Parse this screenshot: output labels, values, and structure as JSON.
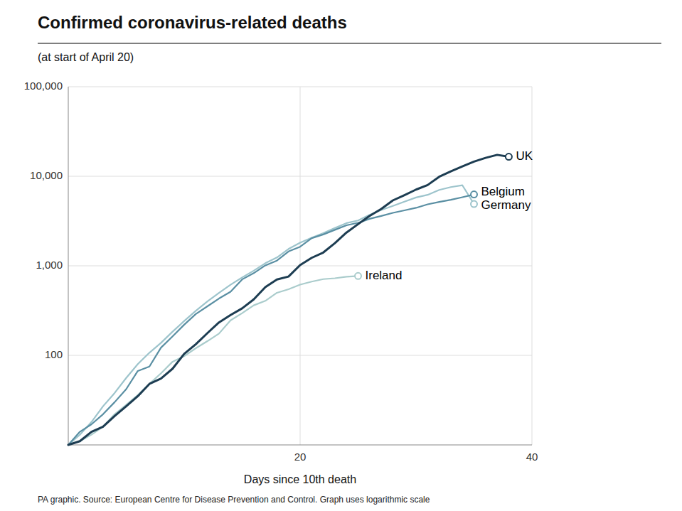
{
  "chart_data": {
    "type": "line",
    "title": "Confirmed coronavirus-related deaths",
    "subtitle": "(at start of April 20)",
    "xlabel": "Days since 10th death",
    "source": "PA graphic. Source: European Centre for Disease Prevention and Control. Graph uses logarithmic scale",
    "log": "y",
    "grid": true,
    "xlim": [
      0,
      40
    ],
    "ylim": [
      10,
      100000
    ],
    "xticks": [
      20,
      40
    ],
    "yticks": [
      100,
      {
        "value": 1000,
        "label": "1,000"
      },
      {
        "value": 10000,
        "label": "10,000"
      },
      {
        "value": 100000,
        "label": "100,000"
      }
    ],
    "series": [
      {
        "name": "UK",
        "color": "#1d3d52",
        "x": [
          0,
          1,
          2,
          3,
          4,
          5,
          6,
          7,
          8,
          9,
          10,
          11,
          12,
          13,
          14,
          15,
          16,
          17,
          18,
          19,
          20,
          21,
          22,
          23,
          24,
          25,
          26,
          27,
          28,
          29,
          30,
          31,
          32,
          33,
          34,
          35,
          36,
          37,
          38
        ],
        "values": [
          10,
          11,
          14,
          16,
          21,
          27,
          35,
          48,
          55,
          71,
          104,
          133,
          177,
          233,
          282,
          335,
          422,
          578,
          703,
          759,
          1019,
          1228,
          1408,
          1789,
          2352,
          2921,
          3605,
          4313,
          5373,
          6159,
          7097,
          7978,
          9875,
          11329,
          12868,
          14576,
          16060,
          17337,
          16509
        ]
      },
      {
        "name": "Belgium",
        "color": "#5a8fa3",
        "x": [
          0,
          1,
          2,
          3,
          4,
          5,
          6,
          7,
          8,
          9,
          10,
          11,
          12,
          13,
          14,
          15,
          16,
          17,
          18,
          19,
          20,
          21,
          22,
          23,
          24,
          25,
          26,
          27,
          28,
          29,
          30,
          31,
          32,
          33,
          34,
          35
        ],
        "values": [
          10,
          14,
          17,
          22,
          30,
          42,
          67,
          75,
          122,
          163,
          220,
          289,
          353,
          431,
          513,
          705,
          828,
          1011,
          1143,
          1447,
          1632,
          2035,
          2240,
          2523,
          2833,
          3019,
          3346,
          3600,
          3903,
          4157,
          4440,
          4857,
          5163,
          5453,
          5828,
          6262
        ]
      },
      {
        "name": "Germany",
        "color": "#9dc4cc",
        "x": [
          0,
          1,
          2,
          3,
          4,
          5,
          6,
          7,
          8,
          9,
          10,
          11,
          12,
          13,
          14,
          15,
          16,
          17,
          18,
          19,
          20,
          21,
          22,
          23,
          24,
          25,
          26,
          27,
          28,
          29,
          30,
          31,
          32,
          33,
          34,
          35
        ],
        "values": [
          10,
          13,
          18,
          27,
          38,
          56,
          80,
          107,
          138,
          184,
          242,
          314,
          400,
          499,
          614,
          741,
          882,
          1069,
          1238,
          1541,
          1810,
          2061,
          2314,
          2640,
          2999,
          3206,
          3710,
          4199,
          4669,
          5208,
          5795,
          6198,
          7028,
          7569,
          7928,
          4900
        ]
      },
      {
        "name": "Ireland",
        "color": "#aacccc",
        "x": [
          0,
          1,
          2,
          3,
          4,
          5,
          6,
          7,
          8,
          9,
          10,
          11,
          12,
          13,
          14,
          15,
          16,
          17,
          18,
          19,
          20,
          21,
          22,
          23,
          24,
          25
        ],
        "values": [
          10,
          11,
          13,
          16,
          22,
          28,
          36,
          48,
          63,
          85,
          98,
          120,
          144,
          175,
          246,
          296,
          362,
          406,
          500,
          547,
          616,
          666,
          710,
          726,
          755,
          769
        ]
      }
    ]
  }
}
